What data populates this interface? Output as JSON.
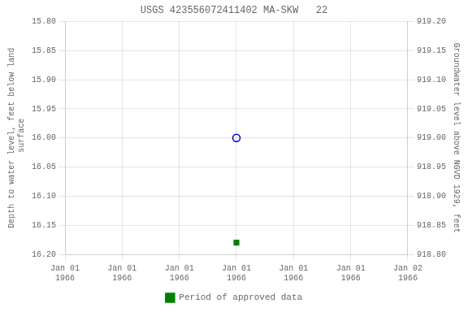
{
  "chart_data": {
    "type": "scatter",
    "title": "USGS 423556072411402 MA-SKW   22",
    "y_label": "Depth to water level, feet below land\n surface",
    "y2_label": "Groundwater level above NGVD 1929, feet",
    "categories": [
      "Jan 01\n1966",
      "Jan 01\n1966",
      "Jan 01\n1966",
      "Jan 01\n1966",
      "Jan 01\n1966",
      "Jan 01\n1966",
      "Jan 02\n1966"
    ],
    "series": [
      {
        "color": "#0000cc",
        "marker": "open_circle",
        "values": [
          null,
          null,
          null,
          16.0,
          null,
          null,
          null
        ]
      },
      {
        "name": "Period of approved data",
        "color": "#008000",
        "marker": "square",
        "values": [
          null,
          null,
          null,
          16.18,
          null,
          null,
          null
        ]
      }
    ],
    "ylim": [
      16.2,
      15.8
    ],
    "yticks": [
      {
        "value": 15.8,
        "label": "15.80"
      },
      {
        "value": 15.85,
        "label": "15.85"
      },
      {
        "value": 15.9,
        "label": "15.90"
      },
      {
        "value": 15.95,
        "label": "15.95"
      },
      {
        "value": 16.0,
        "label": "16.00"
      },
      {
        "value": 16.05,
        "label": "16.05"
      },
      {
        "value": 16.1,
        "label": "16.10"
      },
      {
        "value": 16.15,
        "label": "16.15"
      },
      {
        "value": 16.2,
        "label": "16.20"
      }
    ],
    "y2lim": [
      918.8,
      919.2
    ],
    "y2ticks": [
      {
        "value": 919.2,
        "label": "919.20"
      },
      {
        "value": 919.15,
        "label": "919.15"
      },
      {
        "value": 919.1,
        "label": "919.10"
      },
      {
        "value": 919.05,
        "label": "919.05"
      },
      {
        "value": 919.0,
        "label": "919.00"
      },
      {
        "value": 918.95,
        "label": "918.95"
      },
      {
        "value": 918.9,
        "label": "918.90"
      },
      {
        "value": 918.85,
        "label": "918.85"
      },
      {
        "value": 918.8,
        "label": "918.80"
      }
    ],
    "grid": true,
    "legend": "bottom"
  }
}
